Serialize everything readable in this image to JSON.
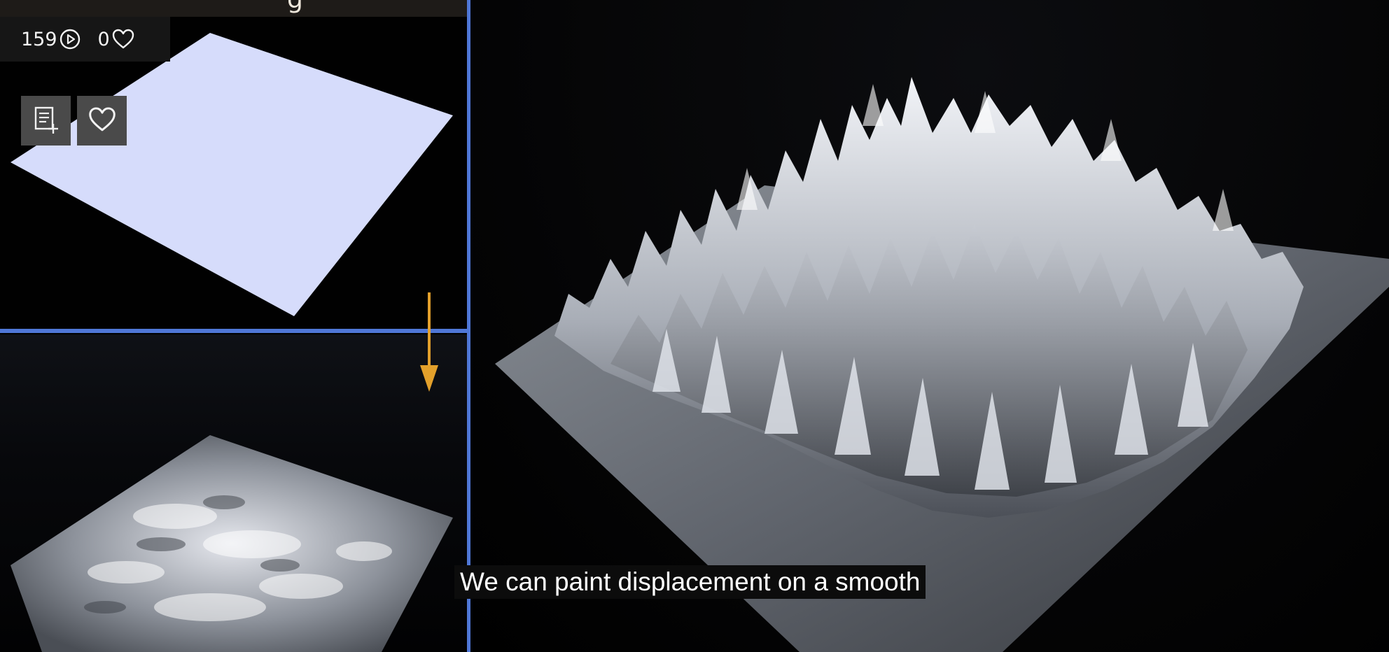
{
  "header": {
    "title_fragment": "g"
  },
  "stats": {
    "views_count": "159",
    "views_icon": "play-circle-icon",
    "likes_count": "0",
    "likes_icon": "heart-outline-icon"
  },
  "actions": {
    "add_icon": "add-to-playlist-icon",
    "favorite_icon": "heart-outline-icon"
  },
  "video": {
    "subtitle": "We can paint displacement on a smooth",
    "accent_color": "#4f77d6",
    "arrow_color": "#e3a02b",
    "plane_color": "#d6dcfb"
  }
}
